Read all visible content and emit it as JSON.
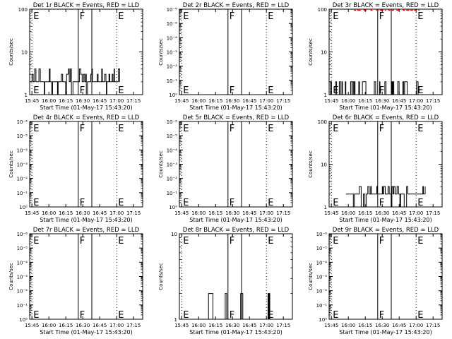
{
  "figure": {
    "background": "#ffffff",
    "event_color": "#000000",
    "lld_color": "#ff0000"
  },
  "chart_data": [
    {
      "type": "line",
      "title": "Det 1r BLACK = Events, RED = LLD",
      "xlabel": "Start Time (01-May-17 15:43:20)",
      "ylabel": "Counts/sec",
      "x_ticks": [
        "15:45",
        "16:00",
        "16:15",
        "16:30",
        "16:45",
        "17:00",
        "17:15"
      ],
      "y_scale": "log",
      "y_ticks": [
        "1",
        "10",
        "100"
      ],
      "ylim": [
        1,
        100
      ],
      "markers": [
        {
          "label": "E",
          "time": "15:45",
          "style": "dotted"
        },
        {
          "label": "F",
          "time": "16:26",
          "style": "solid"
        },
        {
          "label": "",
          "time": "16:38",
          "style": "solid"
        },
        {
          "label": "E",
          "time": "17:00",
          "style": "dotted"
        }
      ],
      "series": [
        {
          "color": "black",
          "time_range": [
            "15:43",
            "17:03"
          ],
          "levels": [
            1,
            2,
            3,
            4
          ],
          "typical": 2
        },
        {
          "color": "red",
          "time_range": [],
          "levels": [],
          "typical": null
        }
      ]
    },
    {
      "type": "line",
      "title": "Det 2r BLACK = Events, RED = LLD",
      "xlabel": "Start Time (01-May-17 15:43:20)",
      "ylabel": "Counts/sec",
      "x_ticks": [
        "15:45",
        "16:00",
        "16:15",
        "16:30",
        "16:45",
        "17:00",
        "17:15"
      ],
      "y_scale": "log",
      "y_ticks": [
        "10⁰",
        "10⁻¹",
        "10⁻²",
        "10⁻³",
        "10⁻⁴",
        "10⁻⁵",
        "10⁻⁶"
      ],
      "ylim": [
        1e-06,
        1
      ],
      "markers": [
        {
          "label": "E",
          "time": "15:45",
          "style": "dotted"
        },
        {
          "label": "F",
          "time": "16:26",
          "style": "solid"
        },
        {
          "label": "",
          "time": "16:38",
          "style": "solid"
        },
        {
          "label": "E",
          "time": "17:00",
          "style": "dotted"
        }
      ],
      "series": []
    },
    {
      "type": "line",
      "title": "Det 3r BLACK = Events, RED = LLD",
      "xlabel": "Start Time (01-May-17 15:43:20)",
      "ylabel": "Counts/sec",
      "x_ticks": [
        "15:45",
        "16:00",
        "16:15",
        "16:30",
        "16:45",
        "17:00",
        "17:15"
      ],
      "y_scale": "log",
      "y_ticks": [
        "1",
        "10",
        "100"
      ],
      "ylim": [
        1,
        100
      ],
      "markers": [
        {
          "label": "E",
          "time": "15:45",
          "style": "dotted"
        },
        {
          "label": "F",
          "time": "16:26",
          "style": "solid"
        },
        {
          "label": "",
          "time": "16:38",
          "style": "solid"
        },
        {
          "label": "E",
          "time": "17:00",
          "style": "dotted"
        }
      ],
      "series": [
        {
          "color": "black",
          "time_range": [
            "15:43",
            "17:03"
          ],
          "levels": [
            1,
            2
          ],
          "typical": 1
        },
        {
          "color": "red",
          "time_range": [
            "16:05",
            "17:03"
          ],
          "levels": [
            100
          ],
          "typical": 100
        }
      ]
    },
    {
      "type": "line",
      "title": "Det 4r BLACK = Events, RED = LLD",
      "xlabel": "Start Time (01-May-17 15:43:20)",
      "ylabel": "Counts/sec",
      "x_ticks": [
        "15:45",
        "16:00",
        "16:15",
        "16:30",
        "16:45",
        "17:00",
        "17:15"
      ],
      "y_scale": "log",
      "y_ticks": [
        "10⁰",
        "10⁻¹",
        "10⁻²",
        "10⁻³",
        "10⁻⁴",
        "10⁻⁵",
        "10⁻⁶"
      ],
      "ylim": [
        1e-06,
        1
      ],
      "markers": [
        {
          "label": "E",
          "time": "15:45",
          "style": "dotted"
        },
        {
          "label": "F",
          "time": "16:26",
          "style": "solid"
        },
        {
          "label": "",
          "time": "16:38",
          "style": "solid"
        },
        {
          "label": "E",
          "time": "17:00",
          "style": "dotted"
        }
      ],
      "series": []
    },
    {
      "type": "line",
      "title": "Det 5r BLACK = Events, RED = LLD",
      "xlabel": "Start Time (01-May-17 15:43:20)",
      "ylabel": "Counts/sec",
      "x_ticks": [
        "15:45",
        "16:00",
        "16:15",
        "16:30",
        "16:45",
        "17:00",
        "17:15"
      ],
      "y_scale": "log",
      "y_ticks": [
        "10⁰",
        "10⁻¹",
        "10⁻²",
        "10⁻³",
        "10⁻⁴",
        "10⁻⁵",
        "10⁻⁶"
      ],
      "ylim": [
        1e-06,
        1
      ],
      "markers": [
        {
          "label": "E",
          "time": "15:45",
          "style": "dotted"
        },
        {
          "label": "F",
          "time": "16:26",
          "style": "solid"
        },
        {
          "label": "",
          "time": "16:38",
          "style": "solid"
        },
        {
          "label": "E",
          "time": "17:00",
          "style": "dotted"
        }
      ],
      "series": []
    },
    {
      "type": "line",
      "title": "Det 6r BLACK = Events, RED = LLD",
      "xlabel": "Start Time (01-May-17 15:43:20)",
      "ylabel": "Counts/sec",
      "x_ticks": [
        "15:45",
        "16:00",
        "16:15",
        "16:30",
        "16:45",
        "17:00",
        "17:15"
      ],
      "y_scale": "log",
      "y_ticks": [
        "1",
        "10",
        "100"
      ],
      "ylim": [
        1,
        100
      ],
      "markers": [
        {
          "label": "E",
          "time": "15:45",
          "style": "dotted"
        },
        {
          "label": "F",
          "time": "16:26",
          "style": "solid"
        },
        {
          "label": "",
          "time": "16:38",
          "style": "solid"
        },
        {
          "label": "E",
          "time": "17:00",
          "style": "dotted"
        }
      ],
      "series": [
        {
          "color": "black",
          "time_range": [
            "15:58",
            "17:08"
          ],
          "levels": [
            1,
            2,
            3
          ],
          "typical": 2
        },
        {
          "color": "red",
          "time_range": [],
          "levels": [],
          "typical": null
        }
      ]
    },
    {
      "type": "line",
      "title": "Det 7r BLACK = Events, RED = LLD",
      "xlabel": "Start Time (01-May-17 15:43:20)",
      "ylabel": "Counts/sec",
      "x_ticks": [
        "15:45",
        "16:00",
        "16:15",
        "16:30",
        "16:45",
        "17:00",
        "17:15"
      ],
      "y_scale": "log",
      "y_ticks": [
        "10⁰",
        "10⁻¹",
        "10⁻²",
        "10⁻³",
        "10⁻⁴",
        "10⁻⁵",
        "10⁻⁶"
      ],
      "ylim": [
        1e-06,
        1
      ],
      "markers": [
        {
          "label": "E",
          "time": "15:45",
          "style": "dotted"
        },
        {
          "label": "F",
          "time": "16:26",
          "style": "solid"
        },
        {
          "label": "",
          "time": "16:38",
          "style": "solid"
        },
        {
          "label": "E",
          "time": "17:00",
          "style": "dotted"
        }
      ],
      "series": []
    },
    {
      "type": "line",
      "title": "Det 8r BLACK = Events, RED = LLD",
      "xlabel": "Start Time (01-May-17 15:43:20)",
      "ylabel": "Counts/sec",
      "x_ticks": [
        "15:45",
        "16:00",
        "16:15",
        "16:30",
        "16:45",
        "17:00",
        "17:15"
      ],
      "y_scale": "log",
      "y_ticks": [
        "1",
        "10"
      ],
      "ylim": [
        1,
        10
      ],
      "markers": [
        {
          "label": "E",
          "time": "15:45",
          "style": "dotted"
        },
        {
          "label": "F",
          "time": "16:26",
          "style": "solid"
        },
        {
          "label": "",
          "time": "16:38",
          "style": "solid"
        },
        {
          "label": "E",
          "time": "17:00",
          "style": "dotted"
        }
      ],
      "series": [
        {
          "color": "black",
          "time_range": [
            "16:08",
            "17:03"
          ],
          "levels": [
            1,
            2
          ],
          "typical": 1
        },
        {
          "color": "red",
          "time_range": [],
          "levels": [],
          "typical": null
        }
      ]
    },
    {
      "type": "line",
      "title": "Det 9r BLACK = Events, RED = LLD",
      "xlabel": "Start Time (01-May-17 15:43:20)",
      "ylabel": "Counts/sec",
      "x_ticks": [
        "15:45",
        "16:00",
        "16:15",
        "16:30",
        "16:45",
        "17:00",
        "17:15"
      ],
      "y_scale": "log",
      "y_ticks": [
        "10⁰",
        "10⁻¹",
        "10⁻²",
        "10⁻³",
        "10⁻⁴",
        "10⁻⁵",
        "10⁻⁶"
      ],
      "ylim": [
        1e-06,
        1
      ],
      "markers": [
        {
          "label": "E",
          "time": "15:45",
          "style": "dotted"
        },
        {
          "label": "F",
          "time": "16:26",
          "style": "solid"
        },
        {
          "label": "",
          "time": "16:38",
          "style": "solid"
        },
        {
          "label": "E",
          "time": "17:00",
          "style": "dotted"
        }
      ],
      "series": []
    }
  ]
}
